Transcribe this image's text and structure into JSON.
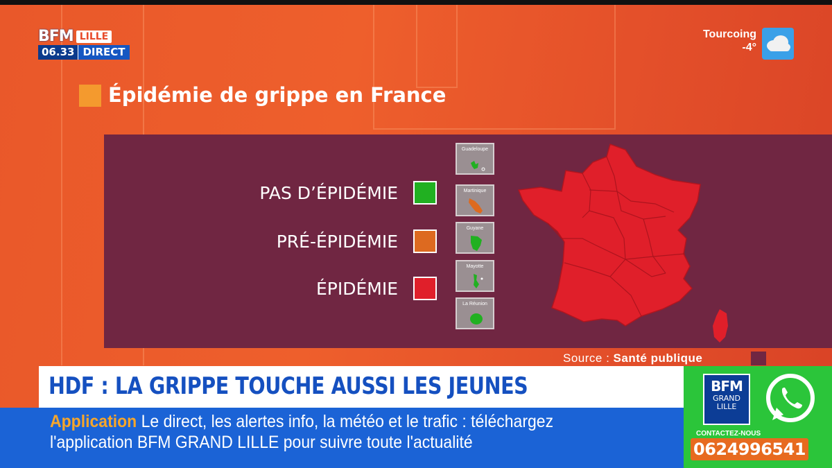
{
  "channel": {
    "logo_main": "BFM",
    "logo_region": "LILLE",
    "time": "06.33",
    "live_label": "DIRECT"
  },
  "weather": {
    "city": "Tourcoing",
    "temperature": "-4°",
    "icon": "cloud-icon"
  },
  "title": "Épidémie de grippe en France",
  "legend": [
    {
      "label": "PAS D’ÉPIDÉMIE",
      "color": "#21b021"
    },
    {
      "label": "PRÉ-ÉPIDÉMIE",
      "color": "#dd6a20"
    },
    {
      "label": "ÉPIDÉMIE",
      "color": "#e01f2a"
    }
  ],
  "overseas": [
    {
      "name": "Guadeloupe",
      "status_color": "#21b021"
    },
    {
      "name": "Martinique",
      "status_color": "#dd6a20"
    },
    {
      "name": "Guyane",
      "status_color": "#21b021"
    },
    {
      "name": "Mayotte",
      "status_color": "#21b021"
    },
    {
      "name": "La Réunion",
      "status_color": "#21b021"
    }
  ],
  "map": {
    "mainland_status_color": "#e01f2a",
    "corsica_status_color": "#e01f2a"
  },
  "source": {
    "prefix": "Source :",
    "name": "Santé publique"
  },
  "headline": "HDF : LA GRIPPE TOUCHE AUSSI LES JEUNES",
  "ticker": {
    "keyword": "Application",
    "line1": "Le direct, les alertes info, la météo et le trafic : téléchargez",
    "line2": "l'application BFM GRAND LILLE pour suivre toute l'actualité"
  },
  "promo": {
    "logo_main": "BFM",
    "logo_sub1": "GRAND",
    "logo_sub2": "LILLE",
    "contact_label": "CONTACTEZ-NOUS",
    "phone": "0624996541",
    "icon": "whatsapp-icon"
  }
}
